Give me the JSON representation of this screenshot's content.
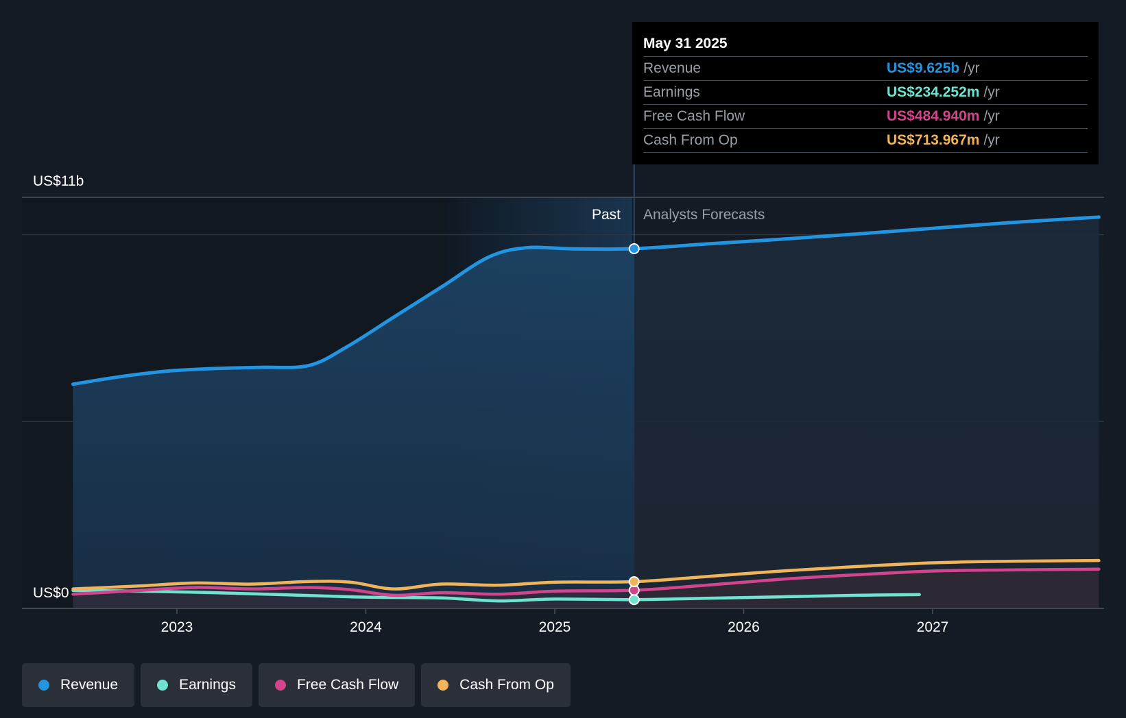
{
  "tooltip": {
    "date": "May 31 2025",
    "rows": [
      {
        "name": "Revenue",
        "value": "US$9.625b",
        "unit": "/yr",
        "color": "#2394df"
      },
      {
        "name": "Earnings",
        "value": "US$234.252m",
        "unit": "/yr",
        "color": "#6fe3d0"
      },
      {
        "name": "Free Cash Flow",
        "value": "US$484.940m",
        "unit": "/yr",
        "color": "#d0458c"
      },
      {
        "name": "Cash From Op",
        "value": "US$713.967m",
        "unit": "/yr",
        "color": "#f0b45a"
      }
    ]
  },
  "chart_data": {
    "type": "line",
    "ylabel_top": "US$11b",
    "ylabel_bottom": "US$0",
    "ylim": [
      0,
      11
    ],
    "x_ticks": [
      "2023",
      "2024",
      "2025",
      "2026",
      "2027"
    ],
    "past_label": "Past",
    "forecast_label": "Analysts Forecasts",
    "grid": true,
    "legend_position": "bottom-left",
    "series": [
      {
        "name": "Revenue",
        "color": "#2394df",
        "points": [
          [
            2022.45,
            6.0
          ],
          [
            2022.7,
            6.2
          ],
          [
            2022.95,
            6.35
          ],
          [
            2023.2,
            6.42
          ],
          [
            2023.45,
            6.45
          ],
          [
            2023.7,
            6.5
          ],
          [
            2023.9,
            7.0
          ],
          [
            2024.15,
            7.8
          ],
          [
            2024.4,
            8.6
          ],
          [
            2024.65,
            9.4
          ],
          [
            2024.85,
            9.65
          ],
          [
            2025.1,
            9.62
          ],
          [
            2025.42,
            9.625
          ],
          [
            2025.8,
            9.75
          ],
          [
            2026.2,
            9.88
          ],
          [
            2026.6,
            10.02
          ],
          [
            2027.0,
            10.17
          ],
          [
            2027.4,
            10.32
          ],
          [
            2027.88,
            10.47
          ]
        ]
      },
      {
        "name": "Earnings",
        "color": "#6fe3d0",
        "points": [
          [
            2022.45,
            0.48
          ],
          [
            2022.8,
            0.46
          ],
          [
            2023.2,
            0.42
          ],
          [
            2023.6,
            0.36
          ],
          [
            2024.0,
            0.3
          ],
          [
            2024.4,
            0.28
          ],
          [
            2024.7,
            0.2
          ],
          [
            2025.0,
            0.25
          ],
          [
            2025.42,
            0.234
          ],
          [
            2025.8,
            0.27
          ],
          [
            2026.2,
            0.31
          ],
          [
            2026.6,
            0.35
          ],
          [
            2026.93,
            0.37
          ]
        ]
      },
      {
        "name": "Free Cash Flow",
        "color": "#d0458c",
        "points": [
          [
            2022.45,
            0.38
          ],
          [
            2022.8,
            0.48
          ],
          [
            2023.1,
            0.56
          ],
          [
            2023.4,
            0.52
          ],
          [
            2023.7,
            0.56
          ],
          [
            2023.92,
            0.5
          ],
          [
            2024.15,
            0.35
          ],
          [
            2024.4,
            0.42
          ],
          [
            2024.7,
            0.38
          ],
          [
            2025.0,
            0.46
          ],
          [
            2025.42,
            0.485
          ],
          [
            2025.8,
            0.62
          ],
          [
            2026.2,
            0.78
          ],
          [
            2026.6,
            0.9
          ],
          [
            2027.0,
            1.0
          ],
          [
            2027.4,
            1.03
          ],
          [
            2027.88,
            1.05
          ]
        ]
      },
      {
        "name": "Cash From Op",
        "color": "#f0b45a",
        "points": [
          [
            2022.45,
            0.52
          ],
          [
            2022.8,
            0.6
          ],
          [
            2023.1,
            0.68
          ],
          [
            2023.4,
            0.65
          ],
          [
            2023.7,
            0.72
          ],
          [
            2023.92,
            0.7
          ],
          [
            2024.15,
            0.52
          ],
          [
            2024.4,
            0.65
          ],
          [
            2024.7,
            0.62
          ],
          [
            2025.0,
            0.7
          ],
          [
            2025.42,
            0.714
          ],
          [
            2025.8,
            0.85
          ],
          [
            2026.2,
            1.0
          ],
          [
            2026.6,
            1.12
          ],
          [
            2027.0,
            1.22
          ],
          [
            2027.4,
            1.26
          ],
          [
            2027.88,
            1.28
          ]
        ]
      }
    ],
    "highlight_date": 2025.42
  },
  "legend": {
    "items": [
      {
        "label": "Revenue",
        "color": "#2394df"
      },
      {
        "label": "Earnings",
        "color": "#6fe3d0"
      },
      {
        "label": "Free Cash Flow",
        "color": "#d0458c"
      },
      {
        "label": "Cash From Op",
        "color": "#f0b45a"
      }
    ]
  }
}
